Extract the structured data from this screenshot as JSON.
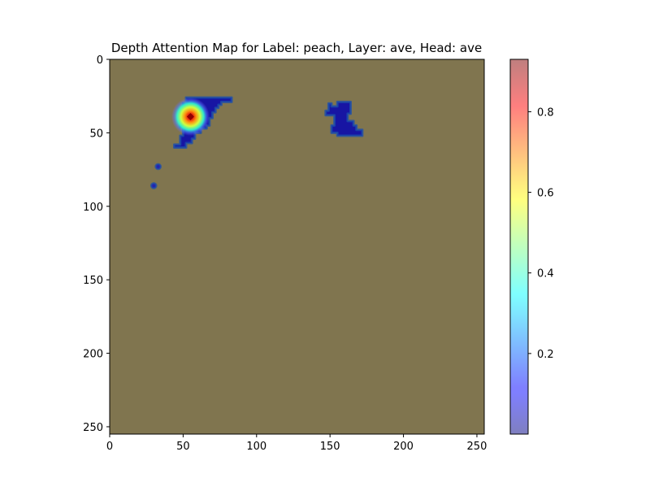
{
  "chart_data": {
    "type": "heatmap",
    "title": "Depth Attention Map for Label: peach, Layer: ave, Head: ave",
    "xlabel": "",
    "ylabel": "",
    "xlim": [
      0,
      255
    ],
    "ylim": [
      255,
      0
    ],
    "x_ticks": [
      0,
      50,
      100,
      150,
      200,
      250
    ],
    "y_ticks": [
      0,
      50,
      100,
      150,
      200,
      250
    ],
    "background_color": "#80754f",
    "colormap": "jet",
    "overlay_alpha": 0.5,
    "colorbar": {
      "range": [
        0.0,
        0.93
      ],
      "ticks": [
        0.2,
        0.4,
        0.6,
        0.8
      ],
      "tick_labels": [
        "0.2",
        "0.4",
        "0.6",
        "0.8"
      ]
    },
    "regions": [
      {
        "shape": "polygon",
        "value": 0.05,
        "points": [
          [
            52,
            26
          ],
          [
            83,
            26
          ],
          [
            83,
            29
          ],
          [
            76,
            29
          ],
          [
            76,
            31
          ],
          [
            74,
            31
          ],
          [
            74,
            33
          ],
          [
            72,
            33
          ],
          [
            72,
            36
          ],
          [
            70,
            36
          ],
          [
            70,
            40
          ],
          [
            68,
            40
          ],
          [
            68,
            45
          ],
          [
            66,
            45
          ],
          [
            66,
            47
          ],
          [
            62,
            47
          ],
          [
            62,
            50
          ],
          [
            58,
            50
          ],
          [
            58,
            54
          ],
          [
            56,
            54
          ],
          [
            56,
            57
          ],
          [
            52,
            57
          ],
          [
            52,
            60
          ],
          [
            44,
            60
          ],
          [
            44,
            58
          ],
          [
            48,
            58
          ],
          [
            48,
            52
          ],
          [
            50,
            52
          ],
          [
            50,
            46
          ],
          [
            48,
            46
          ],
          [
            48,
            36
          ],
          [
            50,
            36
          ],
          [
            50,
            30
          ],
          [
            52,
            30
          ]
        ]
      },
      {
        "shape": "polygon",
        "value": 0.05,
        "points": [
          [
            149,
            30
          ],
          [
            151,
            30
          ],
          [
            151,
            32
          ],
          [
            155,
            32
          ],
          [
            155,
            29
          ],
          [
            164,
            29
          ],
          [
            164,
            37
          ],
          [
            162,
            37
          ],
          [
            162,
            42
          ],
          [
            166,
            42
          ],
          [
            166,
            45
          ],
          [
            168,
            45
          ],
          [
            168,
            48
          ],
          [
            172,
            48
          ],
          [
            172,
            52
          ],
          [
            155,
            52
          ],
          [
            155,
            50
          ],
          [
            151,
            50
          ],
          [
            151,
            45
          ],
          [
            153,
            45
          ],
          [
            153,
            38
          ],
          [
            147,
            38
          ],
          [
            147,
            35
          ],
          [
            149,
            35
          ]
        ]
      },
      {
        "shape": "point",
        "value": 0.08,
        "x": 33,
        "y": 73,
        "r": 2.0
      },
      {
        "shape": "point",
        "value": 0.08,
        "x": 30,
        "y": 86,
        "r": 2.0
      },
      {
        "shape": "point",
        "value": 0.93,
        "x": 55,
        "y": 39,
        "r": 10
      }
    ]
  }
}
